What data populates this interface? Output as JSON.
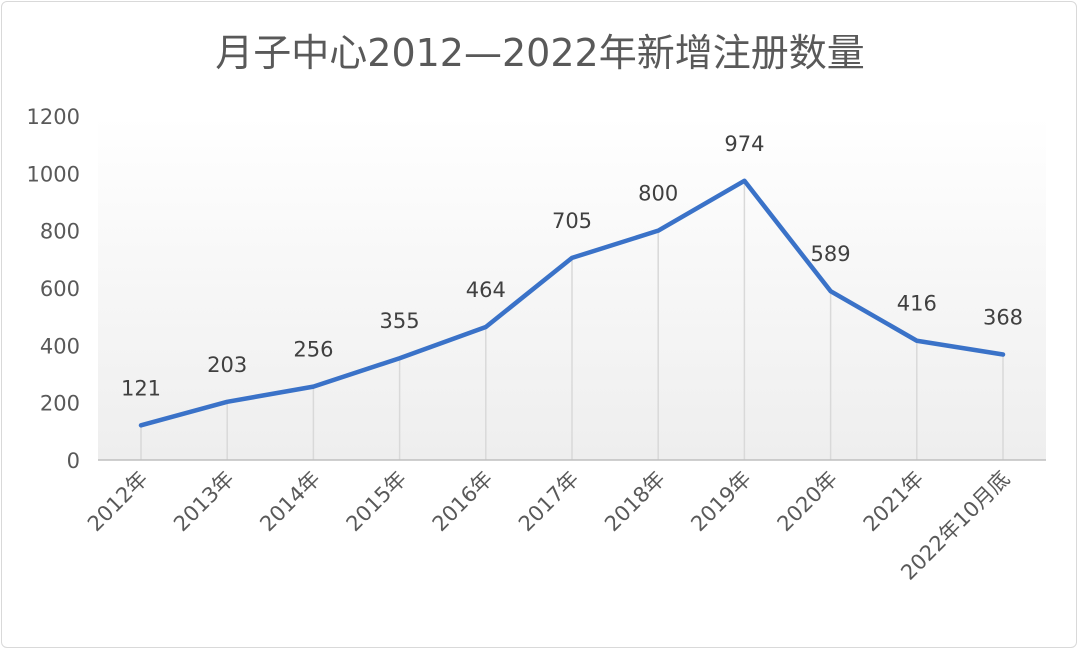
{
  "chart_data": {
    "type": "line",
    "title": "月子中心2012—2022年新增注册数量",
    "categories": [
      "2012年",
      "2013年",
      "2014年",
      "2015年",
      "2016年",
      "2017年",
      "2018年",
      "2019年",
      "2020年",
      "2021年",
      "2022年10月底"
    ],
    "series": [
      {
        "values": [
          121,
          203,
          256,
          355,
          464,
          705,
          800,
          974,
          589,
          416,
          368
        ],
        "color": "#3a72c8"
      }
    ],
    "ylim": [
      0,
      1200
    ],
    "yticks": [
      0,
      200,
      400,
      600,
      800,
      1000,
      1200
    ],
    "data_labels": true,
    "grid": "vertical drop lines",
    "legend": "none"
  }
}
